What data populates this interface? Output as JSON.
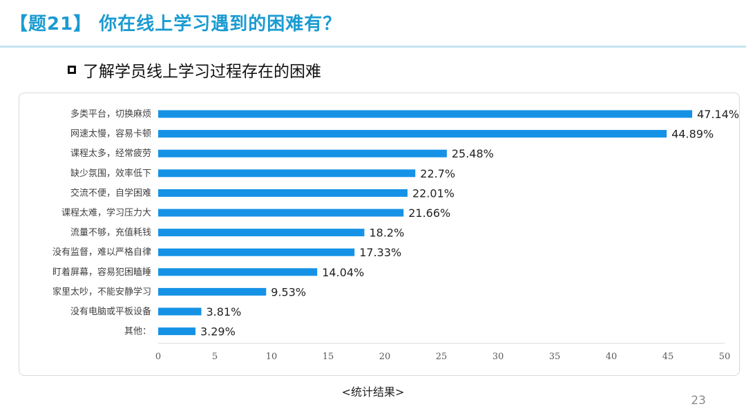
{
  "slide": {
    "title": "【题21】 你在线上学习遇到的困难有？",
    "heading": "了解学员线上学习过程存在的困难",
    "caption": "<统计结果>",
    "page_number": "23"
  },
  "colors": {
    "title": "#1a9bd1",
    "bar": "#1592e6",
    "axis": "#d9d9d9"
  },
  "chart_data": {
    "type": "bar",
    "orientation": "horizontal",
    "categories": [
      "多类平台，切换麻烦",
      "网速太慢，容易卡顿",
      "课程太多，经常疲劳",
      "缺少氛围，效率低下",
      "交流不便，自学困难",
      "课程太难，学习压力大",
      "流量不够，充值耗钱",
      "没有监督，难以严格自律",
      "盯着屏幕，容易犯困瞌睡",
      "家里太吵，不能安静学习",
      "没有电脑或平板设备",
      "其他："
    ],
    "values": [
      47.14,
      44.89,
      25.48,
      22.7,
      22.01,
      21.66,
      18.2,
      17.33,
      14.04,
      9.53,
      3.81,
      3.29
    ],
    "value_labels": [
      "47.14%",
      "44.89%",
      "25.48%",
      "22.7%",
      "22.01%",
      "21.66%",
      "18.2%",
      "17.33%",
      "14.04%",
      "9.53%",
      "3.81%",
      "3.29%"
    ],
    "xlim": [
      0,
      50
    ],
    "xticks": [
      "0",
      "5",
      "10",
      "15",
      "20",
      "25",
      "30",
      "35",
      "40",
      "45",
      "50"
    ],
    "grid": false,
    "legend": "none"
  }
}
